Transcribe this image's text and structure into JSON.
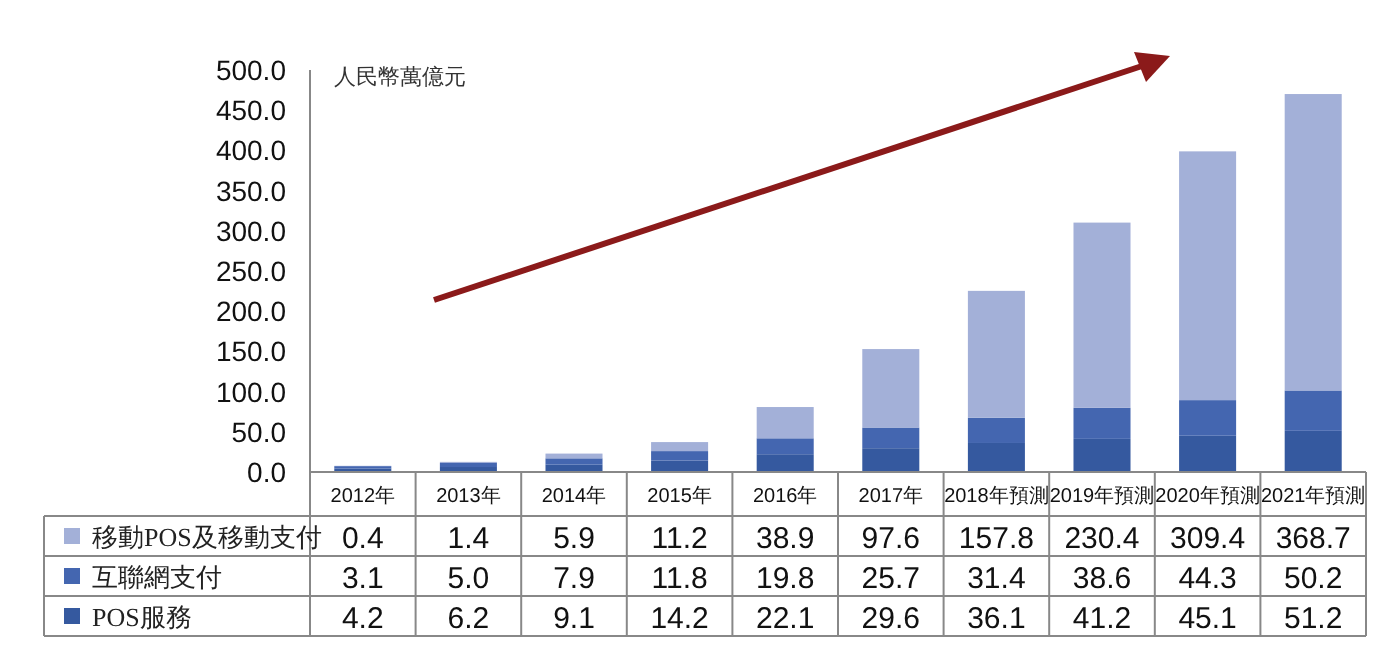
{
  "chart_data": {
    "type": "bar",
    "stacked": true,
    "ylabel": "人民幣萬億元",
    "categories": [
      "2012年",
      "2013年",
      "2014年",
      "2015年",
      "2016年",
      "2017年",
      "2018年預測",
      "2019年預測",
      "2020年預測",
      "2021年預測"
    ],
    "series": [
      {
        "name": "POS服務",
        "color": "#35599f",
        "values": [
          4.2,
          6.2,
          9.1,
          14.2,
          22.1,
          29.6,
          36.1,
          41.2,
          45.1,
          51.2
        ],
        "value_labels": [
          "4.2",
          "6.2",
          "9.1",
          "14.2",
          "22.1",
          "29.6",
          "36.1",
          "41.2",
          "45.1",
          "51.2"
        ]
      },
      {
        "name": "互聯網支付",
        "color": "#4466b0",
        "values": [
          3.1,
          5.0,
          7.9,
          11.8,
          19.8,
          25.7,
          31.4,
          38.6,
          44.3,
          50.2
        ],
        "value_labels": [
          "3.1",
          "5.0",
          "7.9",
          "11.8",
          "19.8",
          "25.7",
          "31.4",
          "38.6",
          "44.3",
          "50.2"
        ]
      },
      {
        "name": "移動POS及移動支付",
        "color": "#a3b0d8",
        "values": [
          0.4,
          1.4,
          5.9,
          11.2,
          38.9,
          97.6,
          157.8,
          230.4,
          309.4,
          368.7
        ],
        "value_labels": [
          "0.4",
          "1.4",
          "5.9",
          "11.2",
          "38.9",
          "97.6",
          "157.8",
          "230.4",
          "309.4",
          "368.7"
        ]
      }
    ],
    "ylim": [
      0,
      500
    ],
    "yticks": [
      {
        "value": 0,
        "label": "0.0"
      },
      {
        "value": 50,
        "label": "50.0"
      },
      {
        "value": 100,
        "label": "100.0"
      },
      {
        "value": 150,
        "label": "150.0"
      },
      {
        "value": 200,
        "label": "200.0"
      },
      {
        "value": 250,
        "label": "250.0"
      },
      {
        "value": 300,
        "label": "300.0"
      },
      {
        "value": 350,
        "label": "350.0"
      },
      {
        "value": 400,
        "label": "400.0"
      },
      {
        "value": 450,
        "label": "450.0"
      },
      {
        "value": 500,
        "label": "500.0"
      }
    ],
    "grid": false,
    "legend": "bottom"
  }
}
